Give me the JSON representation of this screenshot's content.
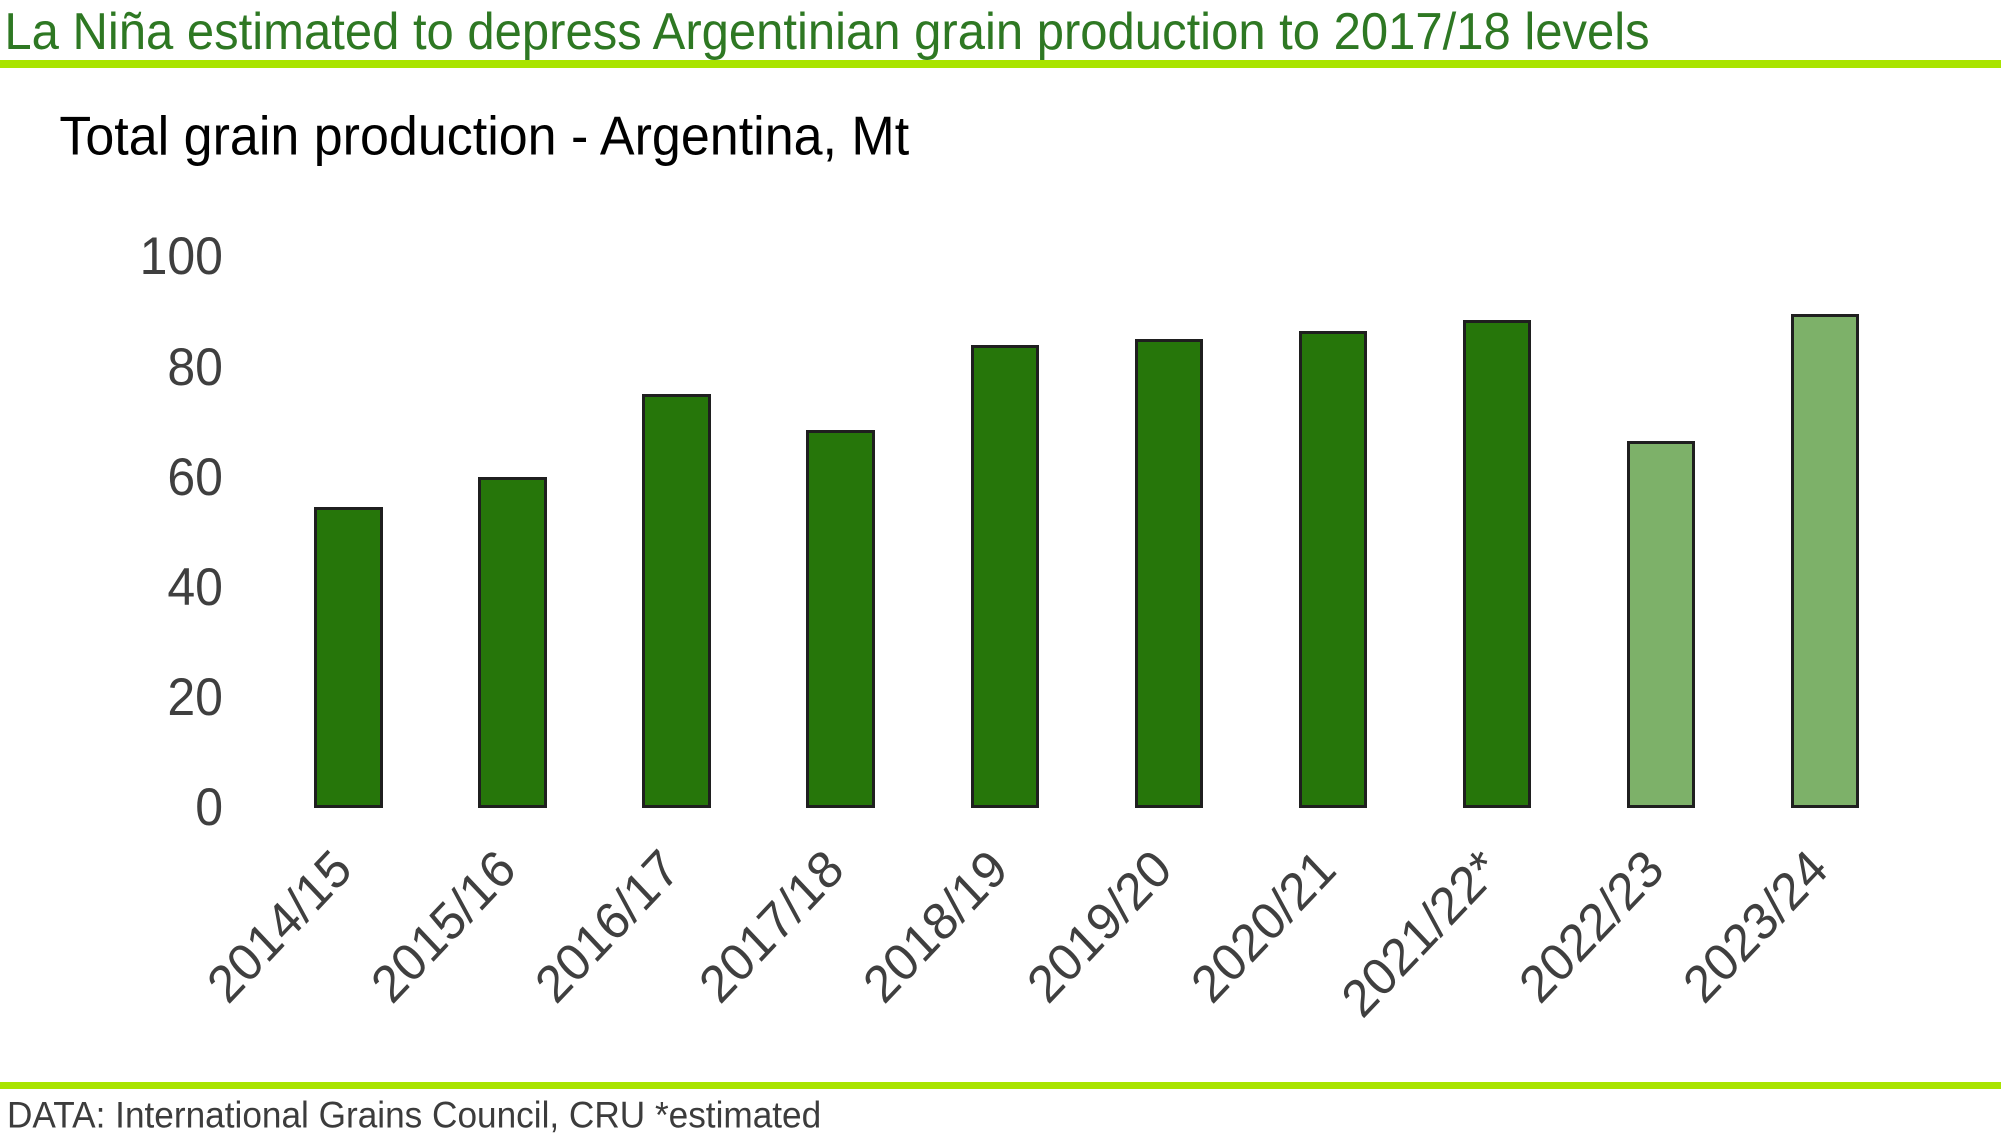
{
  "header": {
    "title": "La Niña estimated to depress Argentinian grain production to 2017/18 levels"
  },
  "footer": {
    "source_note": "DATA: International Grains Council, CRU *estimated"
  },
  "colors": {
    "title_green": "#2e7823",
    "accent_lime": "#a9e400",
    "bar_fill_actual": "#26760a",
    "bar_fill_estimated": "#7db169",
    "bar_border": "#1f1f1f",
    "tick_gray": "#3f3f3f",
    "footer_gray": "#3c3c3c",
    "background": "#ffffff"
  },
  "chart_data": {
    "type": "bar",
    "title": "Total grain production - Argentina, Mt",
    "categories": [
      "2014/15",
      "2015/16",
      "2016/17",
      "2017/18",
      "2018/19",
      "2019/20",
      "2020/21",
      "2021/22*",
      "2022/23",
      "2023/24"
    ],
    "values": [
      54,
      59.5,
      74.5,
      68,
      83.5,
      84.5,
      86,
      88,
      66,
      89
    ],
    "bar_styles": [
      "actual",
      "actual",
      "actual",
      "actual",
      "actual",
      "actual",
      "actual",
      "actual",
      "estimated",
      "estimated"
    ],
    "xlabel": "",
    "ylabel": "",
    "ylim": [
      0,
      100
    ],
    "yticks": [
      0,
      20,
      40,
      60,
      80,
      100
    ],
    "grid": false,
    "legend": false,
    "annotation": "*estimated"
  }
}
